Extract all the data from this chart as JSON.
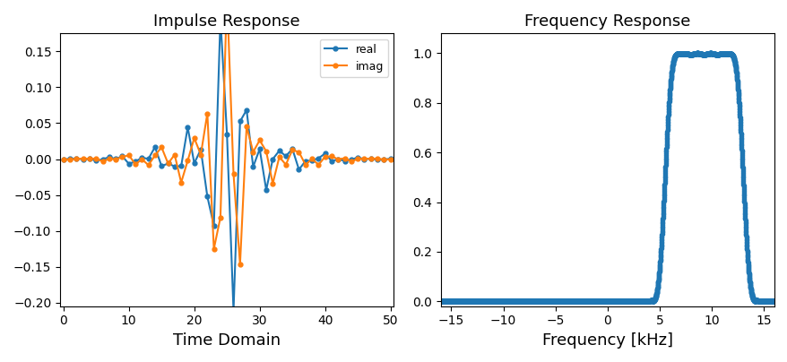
{
  "title_left": "Impulse Response",
  "title_right": "Frequency Response",
  "xlabel_left": "Time Domain",
  "xlabel_right": "Frequency [kHz]",
  "ylim_left": [
    -0.205,
    0.175
  ],
  "ylim_right": [
    -0.02,
    1.08
  ],
  "xlim_left": [
    -0.5,
    50.5
  ],
  "xlim_right": [
    -16,
    16
  ],
  "legend_labels": [
    "real",
    "imag"
  ],
  "real_color": "#1f77b4",
  "imag_color": "#ff7f0e",
  "freq_color": "#1f77b4",
  "num_taps": 51,
  "sample_rate": 32000,
  "cutoff_low": 5500,
  "cutoff_high": 13000,
  "marker_size": 3.5,
  "line_width": 1.5,
  "title_fontsize": 13,
  "xlabel_fontsize": 13,
  "figsize": [
    8.79,
    4.04
  ],
  "dpi": 100
}
